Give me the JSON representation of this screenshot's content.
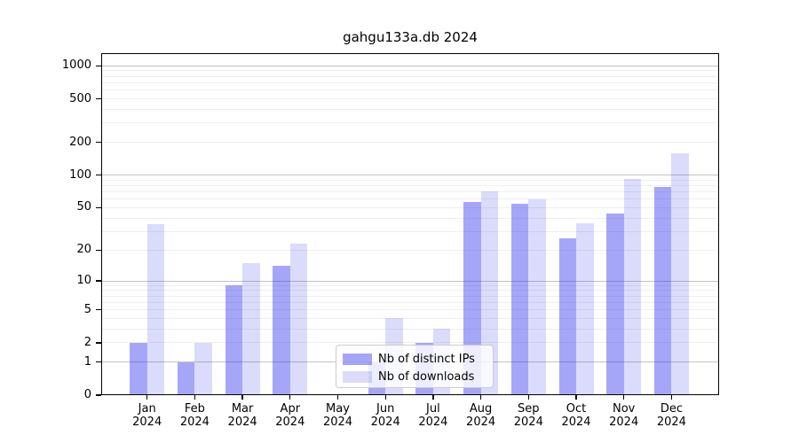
{
  "chart_data": {
    "type": "bar",
    "title": "gahgu133a.db 2024",
    "categories": [
      "Jan",
      "Feb",
      "Mar",
      "Apr",
      "May",
      "Jun",
      "Jul",
      "Aug",
      "Sep",
      "Oct",
      "Nov",
      "Dec"
    ],
    "year_label": "2024",
    "series": [
      {
        "name": "Nb of distinct IPs",
        "color": "rgba(43,43,238,0.42)",
        "values": [
          2,
          1,
          9,
          14,
          0,
          1,
          2,
          57,
          54,
          26,
          44,
          78
        ]
      },
      {
        "name": "Nb of downloads",
        "color": "rgba(43,43,238,0.17)",
        "values": [
          35,
          2,
          15,
          23,
          0,
          4,
          3,
          71,
          60,
          36,
          92,
          158
        ]
      }
    ],
    "yscale": "log1p",
    "ylim": [
      0,
      1280
    ],
    "yticks": [
      0,
      1,
      2,
      5,
      10,
      20,
      50,
      100,
      200,
      500,
      1000
    ],
    "grid": "horizontal major+minor",
    "legend_position": "lower center",
    "colors": {
      "major_gridline": "#c2c2c2",
      "minor_gridline": "#efefef",
      "axis": "#000000",
      "background": "#ffffff"
    }
  }
}
